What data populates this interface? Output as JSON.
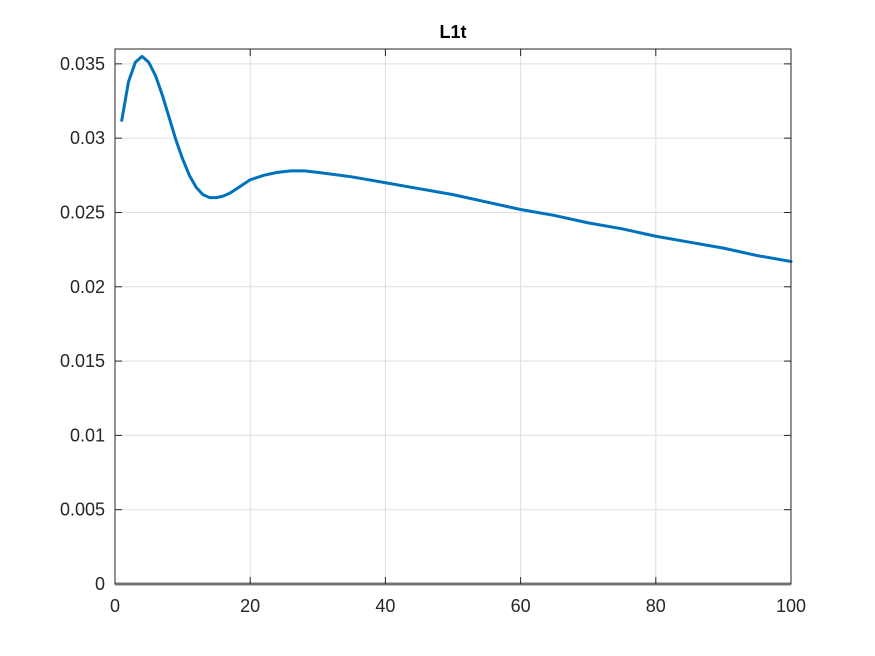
{
  "chart_data": {
    "type": "line",
    "title": "L1t",
    "xlabel": "",
    "ylabel": "",
    "xlim": [
      0,
      100
    ],
    "ylim": [
      0,
      0.036
    ],
    "xticks": [
      0,
      20,
      40,
      60,
      80,
      100
    ],
    "xtick_labels": [
      "0",
      "20",
      "40",
      "60",
      "80",
      "100"
    ],
    "yticks": [
      0,
      0.005,
      0.01,
      0.015,
      0.02,
      0.025,
      0.03,
      0.035
    ],
    "ytick_labels": [
      "0",
      "0.005",
      "0.01",
      "0.015",
      "0.02",
      "0.025",
      "0.03",
      "0.035"
    ],
    "grid": true,
    "colors": {
      "series": "#0072BD",
      "baseline": "#BDBDBD",
      "grid": "#DFDFDF",
      "axis": "#262626"
    },
    "baseline_y": 0,
    "series": [
      {
        "x": [
          1,
          2,
          3,
          4,
          5,
          6,
          7,
          8,
          9,
          10,
          11,
          12,
          13,
          14,
          15,
          16,
          17,
          18,
          19,
          20,
          22,
          24,
          26,
          28,
          30,
          35,
          40,
          45,
          50,
          55,
          60,
          65,
          70,
          75,
          80,
          85,
          90,
          95,
          100
        ],
        "y": [
          0.0312,
          0.0338,
          0.0351,
          0.0355,
          0.0351,
          0.0342,
          0.0329,
          0.0314,
          0.0299,
          0.0286,
          0.0275,
          0.0267,
          0.0262,
          0.026,
          0.026,
          0.0261,
          0.0263,
          0.0266,
          0.0269,
          0.0272,
          0.0275,
          0.0277,
          0.0278,
          0.0278,
          0.0277,
          0.0274,
          0.027,
          0.0266,
          0.0262,
          0.0257,
          0.0252,
          0.0248,
          0.0243,
          0.0239,
          0.0234,
          0.023,
          0.0226,
          0.0221,
          0.0217
        ]
      }
    ]
  }
}
